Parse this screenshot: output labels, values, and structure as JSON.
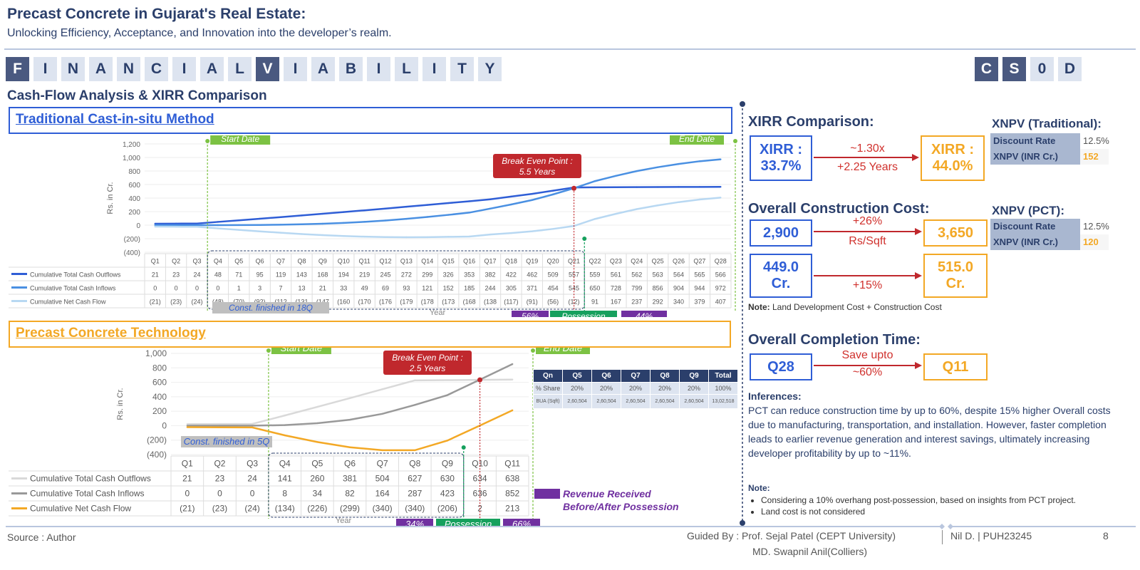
{
  "header": {
    "title": "Precast Concrete in Gujarat's Real Estate:",
    "subtitle": "Unlocking Efficiency, Acceptance, and Innovation into the developer’s realm."
  },
  "banner": {
    "letters": [
      "F",
      "I",
      "N",
      "A",
      "N",
      "C",
      "I",
      "A",
      "L",
      "V",
      "I",
      "A",
      "B",
      "I",
      "L",
      "I",
      "T",
      "Y"
    ],
    "dark_indices": [
      0,
      9
    ],
    "code_letters": [
      "C",
      "S",
      "0",
      "D"
    ],
    "code_dark_indices": [
      0,
      1
    ]
  },
  "section_title": "Cash-Flow Analysis & XIRR Comparison",
  "traditional": {
    "heading": "Traditional Cast-in-situ Method",
    "start_label": "Start Date",
    "end_label": "End Date",
    "break_even_line1": "Break Even Point :",
    "break_even_line2": "5.5 Years",
    "const_label": "Const. finished in 18Q",
    "pill_before": "56%",
    "pill_possession": "Possession",
    "pill_after": "44%",
    "xlabel": "Year",
    "ylabel": "Rs. in Cr."
  },
  "precast": {
    "heading": "Precast Concrete Technology",
    "start_label": "Start Date",
    "end_label": "End Date",
    "break_even_line1": "Break Even Point :",
    "break_even_line2": "2.5 Years",
    "const_label": "Const. finished in 5Q",
    "pill_before": "34%",
    "pill_possession": "Possession",
    "pill_after": "66%",
    "xlabel": "Year",
    "ylabel": "Rs. in Cr.",
    "legend_revenue_line1": "Revenue Received",
    "legend_revenue_line2": "Before/After Possession",
    "qtable": {
      "headers": [
        "Qn",
        "Q5",
        "Q6",
        "Q7",
        "Q8",
        "Q9",
        "Total"
      ],
      "rows": [
        [
          "% Share",
          "20%",
          "20%",
          "20%",
          "20%",
          "20%",
          "100%"
        ],
        [
          "BUA (Sqft)",
          "2,60,504",
          "2,60,504",
          "2,60,504",
          "2,60,504",
          "2,60,504",
          "13,02,518"
        ]
      ]
    }
  },
  "chart_data": [
    {
      "type": "line",
      "title": "Traditional Cast-in-situ Method",
      "xlabel": "Year",
      "ylabel": "Rs. in Cr.",
      "ylim": [
        -400,
        1200
      ],
      "yticks": [
        "1,200",
        "1,000",
        "800",
        "600",
        "400",
        "200",
        "0",
        "(200)",
        "(400)"
      ],
      "categories": [
        "Q1",
        "Q2",
        "Q3",
        "Q4",
        "Q5",
        "Q6",
        "Q7",
        "Q8",
        "Q9",
        "Q10",
        "Q11",
        "Q12",
        "Q13",
        "Q14",
        "Q15",
        "Q16",
        "Q17",
        "Q18",
        "Q19",
        "Q20",
        "Q21",
        "Q22",
        "Q23",
        "Q24",
        "Q25",
        "Q26",
        "Q27",
        "Q28"
      ],
      "series": [
        {
          "name": "Cumulative Total Cash Outflows",
          "color": "#2f5ed6",
          "values": [
            21,
            23,
            24,
            48,
            71,
            95,
            119,
            143,
            168,
            194,
            219,
            245,
            272,
            299,
            326,
            353,
            382,
            422,
            462,
            509,
            557,
            559,
            561,
            562,
            563,
            564,
            565,
            566
          ],
          "labels": [
            "21",
            "23",
            "24",
            "48",
            "71",
            "95",
            "119",
            "143",
            "168",
            "194",
            "219",
            "245",
            "272",
            "299",
            "326",
            "353",
            "382",
            "422",
            "462",
            "509",
            "557",
            "559",
            "561",
            "562",
            "563",
            "564",
            "565",
            "566"
          ]
        },
        {
          "name": "Cumulative Total Cash Inflows",
          "color": "#4a90e2",
          "values": [
            0,
            0,
            0,
            0,
            1,
            3,
            7,
            13,
            21,
            33,
            49,
            69,
            93,
            121,
            152,
            185,
            244,
            305,
            371,
            454,
            545,
            650,
            728,
            799,
            856,
            904,
            944,
            972
          ],
          "labels": [
            "0",
            "0",
            "0",
            "0",
            "1",
            "3",
            "7",
            "13",
            "21",
            "33",
            "49",
            "69",
            "93",
            "121",
            "152",
            "185",
            "244",
            "305",
            "371",
            "454",
            "545",
            "650",
            "728",
            "799",
            "856",
            "904",
            "944",
            "972"
          ]
        },
        {
          "name": "Cumulative Net Cash Flow",
          "color": "#b8d8f2",
          "values": [
            -21,
            -23,
            -24,
            -48,
            -70,
            -92,
            -112,
            -131,
            -147,
            -160,
            -170,
            -176,
            -179,
            -178,
            -173,
            -168,
            -138,
            -117,
            -91,
            -56,
            -12,
            91,
            167,
            237,
            292,
            340,
            379,
            407
          ],
          "labels": [
            "(21)",
            "(23)",
            "(24)",
            "(48)",
            "(70)",
            "(92)",
            "(112",
            "(131",
            "(147",
            "(160",
            "(170",
            "(176",
            "(179",
            "(178",
            "(173",
            "(168",
            "(138",
            "(117)",
            "(91)",
            "(56)",
            "(12)",
            "91",
            "167",
            "237",
            "292",
            "340",
            "379",
            "407"
          ]
        }
      ]
    },
    {
      "type": "line",
      "title": "Precast Concrete Technology",
      "xlabel": "Year",
      "ylabel": "Rs. in Cr.",
      "ylim": [
        -400,
        1000
      ],
      "yticks": [
        "1,000",
        "800",
        "600",
        "400",
        "200",
        "0",
        "(200)",
        "(400)"
      ],
      "categories": [
        "Q1",
        "Q2",
        "Q3",
        "Q4",
        "Q5",
        "Q6",
        "Q7",
        "Q8",
        "Q9",
        "Q10",
        "Q11"
      ],
      "series": [
        {
          "name": "Cumulative Total Cash Outflows",
          "color": "#d9d9d9",
          "values": [
            21,
            23,
            24,
            141,
            260,
            381,
            504,
            627,
            630,
            634,
            638
          ],
          "labels": [
            "21",
            "23",
            "24",
            "141",
            "260",
            "381",
            "504",
            "627",
            "630",
            "634",
            "638"
          ]
        },
        {
          "name": "Cumulative Total Cash Inflows",
          "color": "#999999",
          "values": [
            0,
            0,
            0,
            8,
            34,
            82,
            164,
            287,
            423,
            636,
            852
          ],
          "labels": [
            "0",
            "0",
            "0",
            "8",
            "34",
            "82",
            "164",
            "287",
            "423",
            "636",
            "852"
          ]
        },
        {
          "name": "Cumulative Net Cash Flow",
          "color": "#f3a825",
          "values": [
            -21,
            -23,
            -24,
            -134,
            -226,
            -299,
            -340,
            -340,
            -206,
            2,
            213
          ],
          "labels": [
            "(21)",
            "(23)",
            "(24)",
            "(134)",
            "(226)",
            "(299)",
            "(340)",
            "(340)",
            "(206)",
            "2",
            "213"
          ]
        }
      ]
    }
  ],
  "right": {
    "xirr_title": "XIRR Comparison:",
    "xirr_left_l1": "XIRR :",
    "xirr_left_l2": "33.7%",
    "xirr_arrow_l1": "~1.30x",
    "xirr_arrow_l2": "+2.25 Years",
    "xirr_right_l1": "XIRR :",
    "xirr_right_l2": "44.0%",
    "xnpv_trad_title": "XNPV (Traditional):",
    "xnpv_trad_rows": [
      {
        "k": "Discount Rate",
        "v": "12.5%"
      },
      {
        "k": "XNPV (INR Cr.)",
        "v": "152"
      }
    ],
    "xnpv_pct_title": "XNPV (PCT):",
    "xnpv_pct_rows": [
      {
        "k": "Discount Rate",
        "v": "12.5%"
      },
      {
        "k": "XNPV (INR Cr.)",
        "v": "120"
      }
    ],
    "cost_title": "Overall Construction Cost:",
    "cost_left": "2,900",
    "cost_arrow_l1": "+26%",
    "cost_arrow_l2": "Rs/Sqft",
    "cost_right": "3,650",
    "total_left_l1": "449.0",
    "total_left_l2": "Cr.",
    "total_arrow": "+15%",
    "total_right_l1": "515.0",
    "total_right_l2": "Cr.",
    "cost_note_bold": "Note:",
    "cost_note": " Land Development Cost + Construction Cost",
    "time_title": "Overall Completion Time:",
    "time_left": "Q28",
    "time_arrow_l1": "Save upto",
    "time_arrow_l2": "~60%",
    "time_right": "Q11",
    "inferences_title": "Inferences:",
    "inferences_text": "PCT can reduce construction time by up to 60%, despite 15% higher Overall costs due to manufacturing, transportation, and installation. However, faster completion leads to earlier revenue generation and interest savings, ultimately increasing developer profitability by up to ~11%.",
    "note_title": "Note:",
    "notes": [
      "Considering a 10% overhang post-possession, based on insights from PCT project.",
      "Land cost is not considered"
    ]
  },
  "footer": {
    "source": "Source : Author",
    "guided_by": "Guided By : Prof. Sejal Patel (CEPT University)",
    "guided_by_2": "MD. Swapnil Anil(Colliers)",
    "author": "Nil D. | PUH23245",
    "page": "8"
  }
}
